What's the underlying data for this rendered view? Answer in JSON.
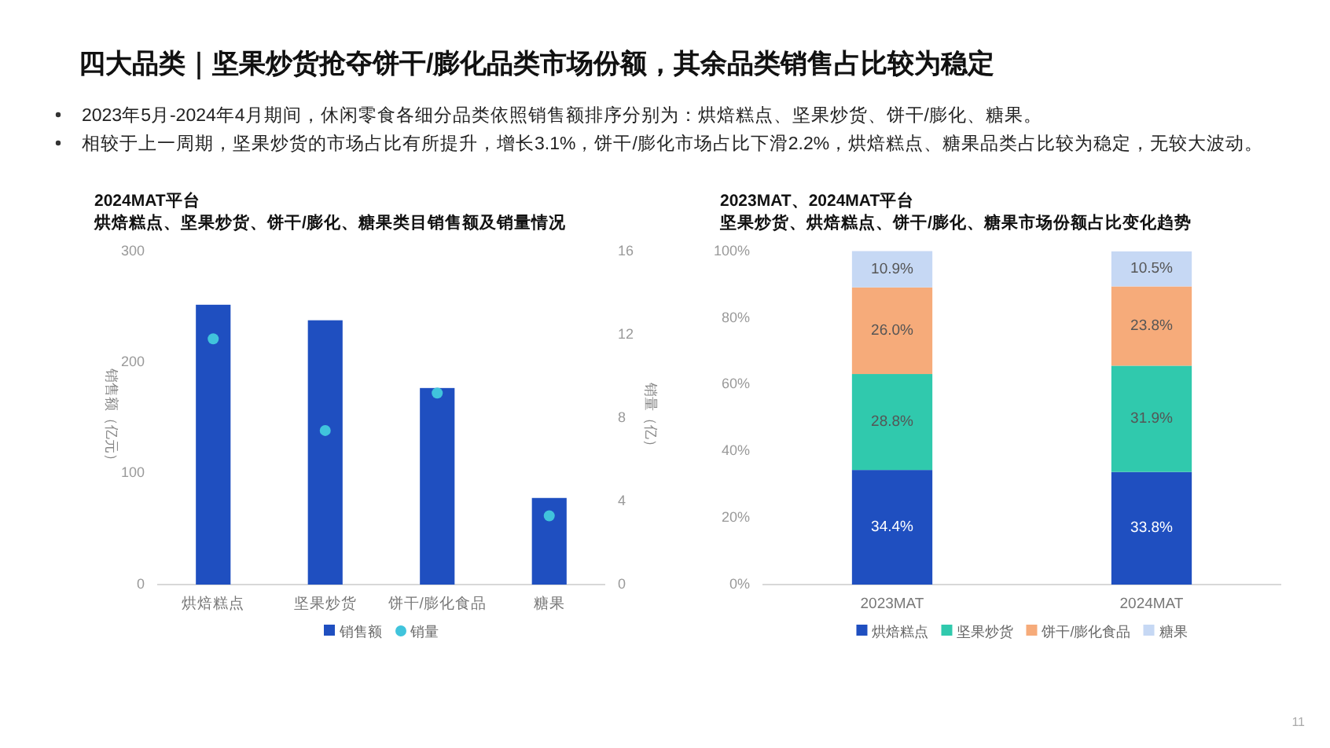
{
  "chart_data": [
    {
      "type": "other",
      "title": "四大品类｜坚果炒货抢夺饼干/膨化品类市场份额，其余品类销售占比较为稳定",
      "annotations": [
        "2023年5月-2024年4月期间，休闲零食各细分品类依照销售额排序分别为：烘焙糕点、坚果炒货、饼干/膨化、糖果。",
        "相较于上一周期，坚果炒货的市场占比有所提升，增长3.1%，饼干/膨化市场占比下滑2.2%，烘焙糕点、糖果品类占比较为稳定，无较大波动。",
        "11"
      ]
    },
    {
      "type": "bar",
      "title": "2024MAT平台",
      "subtitle": "烘焙糕点、坚果炒货、饼干/膨化、糖果类目销售额及销量情况",
      "categories": [
        "烘焙糕点",
        "坚果炒货",
        "饼干/膨化食品",
        "糖果"
      ],
      "ylabel": "销售额（亿元）",
      "y2label": "销量（亿）",
      "ylim": [
        0,
        300
      ],
      "yticks": [
        0,
        100,
        200,
        300
      ],
      "y2lim": [
        0,
        16
      ],
      "y2ticks": [
        0,
        4,
        8,
        12,
        16
      ],
      "legend": "bottom",
      "marker": "circle",
      "series": [
        {
          "name": "销售额",
          "color": "#1f4fc0",
          "values": [
            252,
            238,
            177,
            78
          ]
        },
        {
          "name": "销量",
          "type": "scatter",
          "axis": "y2",
          "color": "#40c4dc",
          "values": [
            11.8,
            7.4,
            9.2,
            3.3
          ]
        }
      ]
    },
    {
      "type": "bar",
      "stacked": true,
      "title": "2023MAT、2024MAT平台",
      "subtitle": "坚果炒货、烘焙糕点、饼干/膨化、糖果市场份额占比变化趋势",
      "categories": [
        "2023MAT",
        "2024MAT"
      ],
      "ylim": [
        0,
        100
      ],
      "yticks": [
        {
          "value": 0,
          "label": "0%"
        },
        {
          "value": 20,
          "label": "20%"
        },
        {
          "value": 40,
          "label": "40%"
        },
        {
          "value": 60,
          "label": "60%"
        },
        {
          "value": 80,
          "label": "80%"
        },
        {
          "value": 100,
          "label": "100%"
        }
      ],
      "legend": "bottom",
      "series": [
        {
          "name": "烘焙糕点",
          "color": "#1f4fc0",
          "values": [
            34.4,
            33.8
          ],
          "value_labels": [
            "34.4%",
            "33.8%"
          ]
        },
        {
          "name": "坚果炒货",
          "color": "#30c9ad",
          "values": [
            28.8,
            31.9
          ],
          "value_labels": [
            "28.8%",
            "31.9%"
          ]
        },
        {
          "name": "饼干/膨化食品",
          "color": "#f6ab7a",
          "values": [
            26.0,
            23.8
          ],
          "value_labels": [
            "26.0%",
            "23.8%"
          ]
        },
        {
          "name": "糖果",
          "color": "#c6d8f4",
          "values": [
            10.9,
            10.5
          ],
          "value_labels": [
            "10.9%",
            "10.5%"
          ]
        }
      ]
    }
  ]
}
